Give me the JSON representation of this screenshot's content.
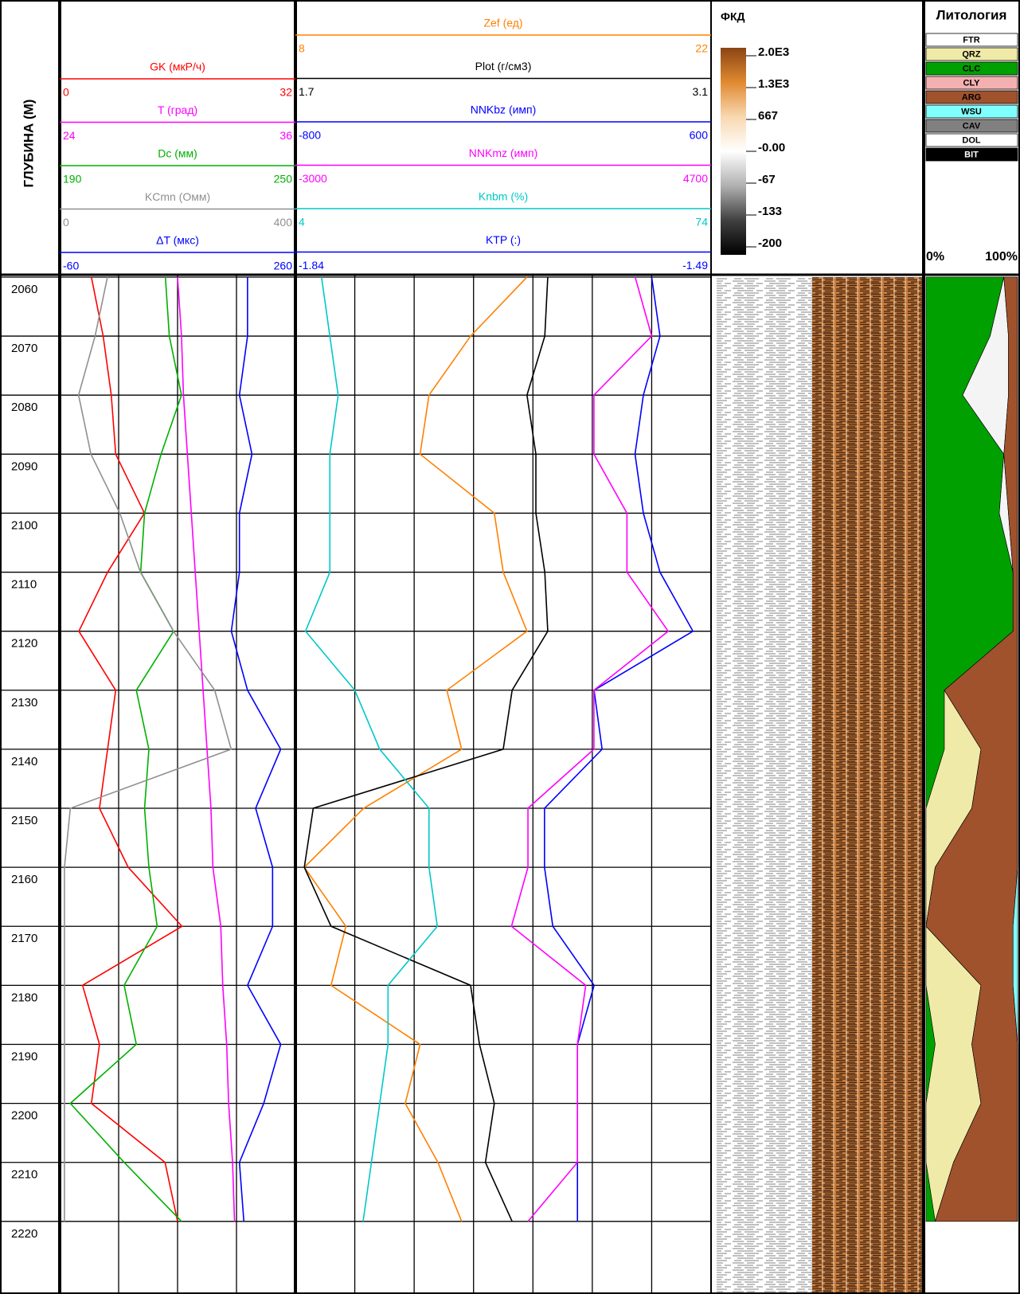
{
  "chart_data": {
    "type": "line",
    "depth_label": "ГЛУБИНА (М)",
    "y": [
      2060,
      2070,
      2080,
      2090,
      2100,
      2110,
      2120,
      2130,
      2140,
      2150,
      2160,
      2170,
      2180,
      2190,
      2200,
      2210,
      2220
    ],
    "ylim": [
      2059.6,
      2232.3
    ],
    "yticks": [
      2060,
      2070,
      2080,
      2090,
      2100,
      2110,
      2120,
      2130,
      2140,
      2150,
      2160,
      2170,
      2180,
      2190,
      2200,
      2210,
      2220
    ],
    "grid": true,
    "tracks": [
      {
        "series": [
          {
            "name": "GK (мкР/ч)",
            "color": "#ff0000",
            "xlim": [
              0,
              32
            ],
            "values": [
              4.3,
              5.9,
              7.0,
              7.6,
              11.5,
              6.5,
              2.6,
              7.6,
              6.5,
              5.4,
              9.3,
              16.6,
              3.1,
              5.4,
              4.3,
              14.3,
              16.0
            ]
          },
          {
            "name": "T (град)",
            "color": "#ff00ff",
            "xlim": [
              24,
              36
            ],
            "values": [
              30.0,
              30.2,
              30.3,
              30.5,
              30.7,
              30.9,
              31.1,
              31.3,
              31.5,
              31.7,
              31.8,
              32.2,
              32.3,
              32.5,
              32.6,
              32.8,
              32.9
            ]
          },
          {
            "name": "Dc (мм)",
            "color": "#00b000",
            "xlim": [
              190,
              250
            ],
            "values": [
              216.9,
              217.9,
              221.0,
              215.8,
              211.6,
              210.6,
              219.0,
              209.5,
              212.7,
              211.6,
              212.7,
              214.8,
              206.4,
              209.5,
              192.7,
              206.4,
              221.0
            ]
          },
          {
            "name": "KCmn (Омм)",
            "color": "#909090",
            "xlim": [
              0,
              400
            ],
            "values": [
              81,
              60,
              32,
              53,
              102,
              137,
              193,
              263,
              291,
              18,
              8,
              8,
              8,
              8,
              8,
              8,
              8
            ]
          },
          {
            "name": "ΔT (мкс)",
            "color": "#0000ff",
            "xlim": [
              -60,
              260
            ],
            "values": [
              195,
              195,
              184,
              201,
              184,
              184,
              173,
              195,
              240,
              206,
              229,
              229,
              195,
              240,
              217,
              184,
              190
            ]
          }
        ]
      },
      {
        "series": [
          {
            "name": "Zef (ед)",
            "color": "#ff8000",
            "xlim": [
              8,
              22
            ],
            "values": [
              15.8,
              13.9,
              12.5,
              12.2,
              14.7,
              15.0,
              15.8,
              13.1,
              13.6,
              10.3,
              8.3,
              9.7,
              9.2,
              12.2,
              11.7,
              12.8,
              13.6
            ]
          },
          {
            "name": "Plot (г/см3)",
            "color": "#000000",
            "xlim": [
              1.7,
              3.1
            ],
            "values": [
              2.55,
              2.54,
              2.48,
              2.51,
              2.51,
              2.54,
              2.55,
              2.43,
              2.4,
              1.76,
              1.73,
              1.82,
              2.29,
              2.32,
              2.37,
              2.34,
              2.43
            ]
          },
          {
            "name": "NNKbz (имп)",
            "color": "#0000ff",
            "xlim": [
              -800,
              600
            ],
            "values": [
              400,
              428,
              372,
              344,
              372,
              428,
              539,
              206,
              233,
              39,
              39,
              67,
              206,
              150,
              150,
              150,
              150
            ]
          },
          {
            "name": "NNKmz (имп)",
            "color": "#ff00ff",
            "xlim": [
              -3000,
              4700
            ],
            "values": [
              3294,
              3600,
              2530,
              2530,
              3142,
              3142,
              3906,
              2530,
              2530,
              1308,
              1308,
              1003,
              2378,
              2225,
              2225,
              2225,
              1308
            ]
          },
          {
            "name": "Knbm (%)",
            "color": "#00c8c8",
            "xlim": [
              4,
              74
            ],
            "values": [
              8.4,
              9.8,
              11.2,
              9.8,
              9.8,
              9.8,
              5.7,
              14.0,
              18.2,
              26.5,
              26.5,
              27.9,
              19.6,
              19.6,
              18.2,
              16.8,
              15.4
            ]
          },
          {
            "name": "KTP (:)",
            "color": "#0000ff",
            "xlim": [
              -1.84,
              -1.49
            ]
          }
        ]
      }
    ],
    "fkd": {
      "title": "ФКД",
      "colorbar": [
        "#8b4513",
        "#e08a30",
        "#f8d8b0",
        "#ffffff",
        "#b0b0b0",
        "#404040",
        "#000000"
      ],
      "ticks": [
        {
          "value": 2000,
          "label": "2.0E3"
        },
        {
          "value": 1300,
          "label": "1.3E3"
        },
        667,
        {
          "value": 0,
          "label": "-0.00"
        },
        -67,
        -133,
        -200
      ]
    },
    "lithology": {
      "title": "Литология",
      "legend": [
        {
          "name": "FTR",
          "color": "#ffffff"
        },
        {
          "name": "QRZ",
          "color": "#f0eaa8"
        },
        {
          "name": "CLC",
          "color": "#00a000"
        },
        {
          "name": "CLY",
          "color": "#f4b0b0"
        },
        {
          "name": "ARG",
          "color": "#a0522d"
        },
        {
          "name": "WSU",
          "color": "#80ffff"
        },
        {
          "name": "CAV",
          "color": "#808080"
        },
        {
          "name": "DOL",
          "color": "#ffffff"
        },
        {
          "name": "BIT",
          "color": "#000000"
        }
      ],
      "xlim": [
        0,
        100
      ],
      "xticks": [
        {
          "value": 0,
          "label": "0%"
        },
        {
          "value": 100,
          "label": "100%"
        }
      ],
      "series": [
        {
          "name": "CLC",
          "color": "#00a000",
          "values": [
            85,
            70,
            40,
            85,
            80,
            95,
            95,
            20,
            20,
            0,
            0,
            0,
            0,
            10,
            0,
            0,
            10
          ]
        },
        {
          "name": "QRZ",
          "color": "#f0eaa8",
          "values": [
            0,
            0,
            0,
            0,
            0,
            0,
            0,
            0,
            40,
            50,
            10,
            0,
            60,
            40,
            60,
            30,
            0
          ]
        },
        {
          "name": "DOL",
          "color": "#f4f4f4",
          "values": [
            0,
            20,
            50,
            0,
            10,
            0,
            0,
            0,
            0,
            0,
            0,
            0,
            0,
            0,
            0,
            0,
            0
          ]
        },
        {
          "name": "ARG",
          "color": "#a0522d",
          "values": [
            15,
            10,
            10,
            15,
            10,
            5,
            5,
            80,
            40,
            50,
            90,
            95,
            35,
            50,
            40,
            70,
            90
          ]
        },
        {
          "name": "WSU",
          "color": "#80ffff",
          "values": [
            0,
            0,
            0,
            0,
            0,
            0,
            0,
            0,
            0,
            0,
            0,
            5,
            5,
            0,
            0,
            0,
            0
          ]
        }
      ]
    }
  }
}
